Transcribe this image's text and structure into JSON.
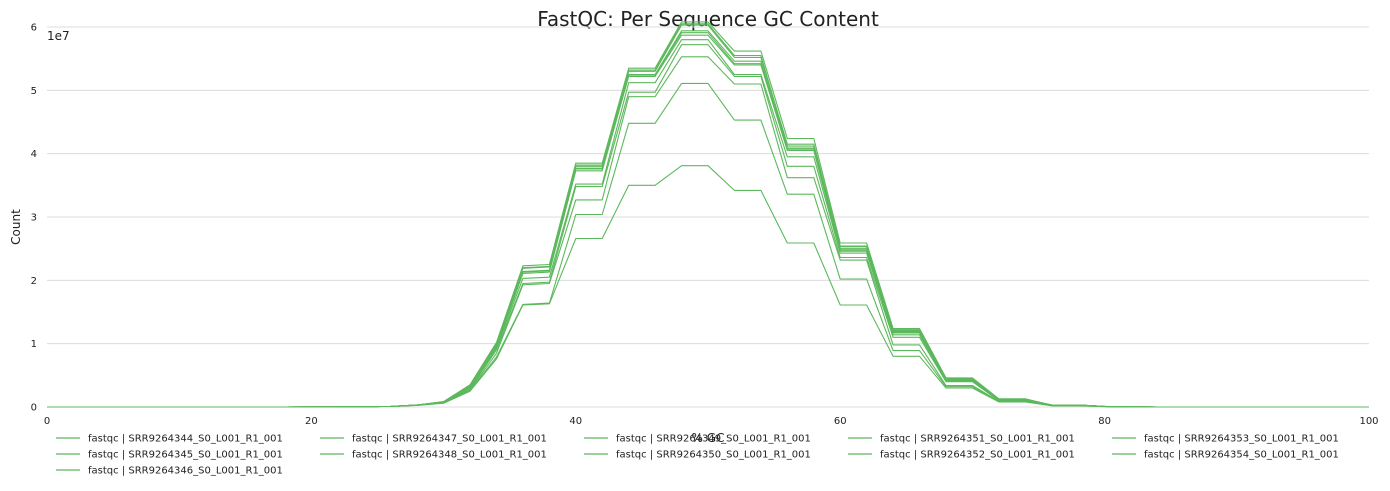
{
  "chart_data": {
    "type": "line",
    "title": "FastQC: Per Sequence GC Content",
    "xlabel": "% GC",
    "ylabel": "Count",
    "y_scale_label": "1e7",
    "xlim": [
      0,
      100
    ],
    "ylim": [
      0,
      63000000
    ],
    "x_ticks": [
      0,
      20,
      40,
      60,
      80,
      100
    ],
    "y_ticks": [
      0,
      10000000,
      20000000,
      30000000,
      40000000,
      50000000,
      60000000
    ],
    "y_tick_labels": [
      "0",
      "1",
      "2",
      "3",
      "4",
      "5",
      "6"
    ],
    "grid": true,
    "legend": "bottom",
    "line_color": "#5cb85c",
    "x": [
      0,
      2,
      4,
      6,
      8,
      10,
      12,
      14,
      16,
      18,
      20,
      22,
      24,
      26,
      28,
      30,
      32,
      34,
      36,
      38,
      40,
      42,
      44,
      46,
      48,
      50,
      52,
      54,
      56,
      58,
      60,
      62,
      64,
      66,
      68,
      70,
      72,
      74,
      76,
      78,
      80,
      82,
      84,
      86,
      88,
      90,
      92,
      94,
      96,
      98,
      100
    ],
    "series": [
      {
        "name": "fastqc | SRR9264344_S0_L001_R1_001",
        "values": [
          0,
          0,
          0,
          0,
          0,
          0,
          0,
          0,
          0,
          0,
          0.01,
          0.02,
          0.04,
          0.1,
          0.3,
          0.85,
          3.5,
          10.2,
          22.3,
          22.5,
          38.5,
          38.5,
          53.5,
          53.5,
          60.8,
          60.8,
          56.2,
          56.2,
          42.4,
          42.4,
          25.9,
          25.9,
          12.4,
          12.4,
          4.6,
          4.6,
          1.3,
          1.3,
          0.3,
          0.3,
          0.1,
          0.02,
          0,
          0,
          0,
          0,
          0,
          0,
          0,
          0,
          0
        ]
      },
      {
        "name": "fastqc | SRR9264345_S0_L001_R1_001",
        "values": [
          0,
          0,
          0,
          0,
          0,
          0,
          0,
          0,
          0,
          0,
          0.01,
          0.02,
          0.04,
          0.1,
          0.3,
          0.8,
          3.3,
          10.0,
          21.9,
          22.1,
          38.0,
          38.0,
          53.0,
          53.0,
          60.3,
          60.3,
          55.2,
          55.2,
          41.5,
          41.5,
          25.4,
          25.4,
          12.1,
          12.1,
          4.4,
          4.4,
          1.2,
          1.2,
          0.3,
          0.3,
          0.1,
          0.02,
          0,
          0,
          0,
          0,
          0,
          0,
          0,
          0,
          0
        ]
      },
      {
        "name": "fastqc | SRR9264346_S0_L001_R1_001",
        "values": [
          0,
          0,
          0,
          0,
          0,
          0,
          0,
          0,
          0,
          0,
          0.01,
          0.02,
          0.04,
          0.1,
          0.3,
          0.8,
          3.3,
          10.0,
          22.0,
          22.2,
          38.2,
          38.2,
          53.2,
          53.2,
          60.5,
          60.5,
          55.5,
          55.5,
          41.2,
          41.2,
          25.3,
          25.3,
          12.2,
          12.2,
          4.5,
          4.5,
          1.2,
          1.2,
          0.3,
          0.3,
          0.1,
          0.02,
          0,
          0,
          0,
          0,
          0,
          0,
          0,
          0,
          0
        ]
      },
      {
        "name": "fastqc | SRR9264347_S0_L001_R1_001",
        "values": [
          0,
          0,
          0,
          0,
          0,
          0,
          0,
          0,
          0,
          0,
          0.01,
          0.02,
          0.04,
          0.1,
          0.3,
          0.8,
          3.2,
          9.7,
          21.4,
          21.6,
          37.7,
          37.7,
          52.5,
          52.5,
          59.4,
          59.4,
          54.6,
          54.6,
          40.9,
          40.9,
          25.0,
          25.0,
          11.9,
          11.9,
          4.3,
          4.3,
          1.2,
          1.2,
          0.3,
          0.3,
          0.1,
          0.02,
          0,
          0,
          0,
          0,
          0,
          0,
          0,
          0,
          0
        ]
      },
      {
        "name": "fastqc | SRR9264348_S0_L001_R1_001",
        "values": [
          0,
          0,
          0,
          0,
          0,
          0,
          0,
          0,
          0,
          0,
          0.01,
          0.02,
          0.04,
          0.1,
          0.3,
          0.8,
          3.2,
          9.6,
          21.3,
          21.5,
          37.6,
          37.6,
          52.4,
          52.4,
          59.1,
          59.1,
          54.2,
          54.2,
          40.7,
          40.7,
          24.8,
          24.8,
          11.8,
          11.8,
          4.3,
          4.3,
          1.2,
          1.2,
          0.3,
          0.3,
          0.1,
          0.02,
          0,
          0,
          0,
          0,
          0,
          0,
          0,
          0,
          0
        ]
      },
      {
        "name": "fastqc | SRR9264349_S0_L001_R1_001",
        "values": [
          0,
          0,
          0,
          0,
          0,
          0,
          0,
          0,
          0,
          0,
          0.01,
          0.02,
          0.04,
          0.1,
          0.3,
          0.8,
          3.1,
          9.5,
          21.1,
          21.3,
          37.3,
          37.3,
          52.2,
          52.2,
          58.7,
          58.7,
          54.0,
          54.0,
          40.5,
          40.5,
          24.6,
          24.6,
          11.7,
          11.7,
          4.2,
          4.2,
          1.1,
          1.1,
          0.3,
          0.3,
          0.1,
          0.02,
          0,
          0,
          0,
          0,
          0,
          0,
          0,
          0,
          0
        ]
      },
      {
        "name": "fastqc | SRR9264350_S0_L001_R1_001",
        "values": [
          0,
          0,
          0,
          0,
          0,
          0,
          0,
          0,
          0,
          0,
          0.01,
          0.02,
          0.04,
          0.1,
          0.3,
          0.75,
          3.0,
          9.3,
          20.3,
          20.5,
          35.2,
          35.2,
          51.2,
          51.2,
          58.0,
          58.0,
          52.5,
          52.5,
          39.5,
          39.5,
          24.3,
          24.3,
          11.4,
          11.4,
          4.1,
          4.1,
          1.1,
          1.1,
          0.3,
          0.3,
          0.1,
          0.02,
          0,
          0,
          0,
          0,
          0,
          0,
          0,
          0,
          0
        ]
      },
      {
        "name": "fastqc | SRR9264351_S0_L001_R1_001",
        "values": [
          0,
          0,
          0,
          0,
          0,
          0,
          0,
          0,
          0,
          0,
          0.01,
          0.02,
          0.04,
          0.1,
          0.3,
          0.75,
          2.9,
          9.0,
          19.5,
          19.7,
          34.8,
          34.8,
          49.7,
          49.7,
          57.2,
          57.2,
          52.2,
          52.2,
          38.0,
          38.0,
          23.6,
          23.6,
          11.0,
          11.0,
          4.0,
          4.0,
          1.0,
          1.0,
          0.3,
          0.3,
          0.1,
          0.02,
          0,
          0,
          0,
          0,
          0,
          0,
          0,
          0,
          0
        ]
      },
      {
        "name": "fastqc | SRR9264352_S0_L001_R1_001",
        "values": [
          0,
          0,
          0,
          0,
          0,
          0,
          0,
          0,
          0,
          0,
          0.01,
          0.02,
          0.04,
          0.1,
          0.3,
          0.7,
          2.7,
          8.5,
          19.3,
          19.5,
          32.7,
          32.7,
          49.0,
          49.0,
          55.3,
          55.3,
          51.0,
          51.0,
          36.2,
          36.2,
          23.2,
          23.2,
          9.8,
          9.8,
          3.4,
          3.4,
          0.9,
          0.9,
          0.2,
          0.2,
          0.1,
          0.02,
          0,
          0,
          0,
          0,
          0,
          0,
          0,
          0,
          0
        ]
      },
      {
        "name": "fastqc | SRR9264353_S0_L001_R1_001",
        "values": [
          0,
          0,
          0,
          0,
          0,
          0,
          0,
          0,
          0,
          0,
          0.01,
          0.02,
          0.04,
          0.1,
          0.3,
          0.7,
          2.6,
          7.9,
          16.2,
          16.4,
          30.4,
          30.4,
          44.8,
          44.8,
          51.1,
          51.1,
          45.3,
          45.3,
          33.6,
          33.6,
          20.2,
          20.2,
          8.9,
          8.9,
          3.2,
          3.2,
          0.9,
          0.9,
          0.2,
          0.2,
          0.1,
          0.02,
          0,
          0,
          0,
          0,
          0,
          0,
          0,
          0,
          0
        ]
      },
      {
        "name": "fastqc | SRR9264354_S0_L001_R1_001",
        "values": [
          0,
          0,
          0,
          0,
          0,
          0,
          0,
          0,
          0,
          0,
          0.01,
          0.02,
          0.04,
          0.1,
          0.25,
          0.6,
          2.5,
          7.6,
          16.1,
          16.3,
          26.6,
          26.6,
          35.0,
          35.0,
          38.1,
          38.1,
          34.2,
          34.2,
          25.9,
          25.9,
          16.1,
          16.1,
          8.0,
          8.0,
          3.0,
          3.0,
          0.8,
          0.8,
          0.2,
          0.2,
          0.05,
          0.01,
          0,
          0,
          0,
          0,
          0,
          0,
          0,
          0,
          0
        ]
      }
    ],
    "series_value_unit": "1e6"
  }
}
